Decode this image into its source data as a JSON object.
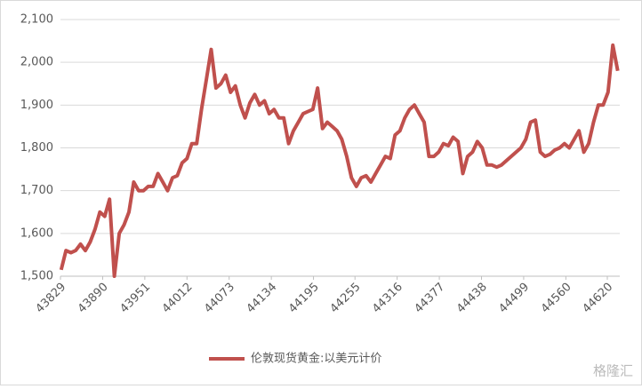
{
  "chart_data": {
    "type": "line",
    "series": [
      {
        "name": "伦敦现货黄金:以美元计价",
        "color": "#c0504d",
        "x": [
          43830,
          43837,
          43844,
          43851,
          43858,
          43865,
          43872,
          43879,
          43886,
          43893,
          43900,
          43907,
          43914,
          43921,
          43928,
          43935,
          43942,
          43949,
          43956,
          43963,
          43970,
          43977,
          43984,
          43991,
          43998,
          44005,
          44012,
          44019,
          44026,
          44033,
          44040,
          44047,
          44054,
          44061,
          44068,
          44075,
          44082,
          44089,
          44096,
          44103,
          44110,
          44117,
          44124,
          44131,
          44138,
          44145,
          44152,
          44159,
          44166,
          44173,
          44180,
          44187,
          44194,
          44201,
          44208,
          44215,
          44222,
          44229,
          44236,
          44243,
          44250,
          44257,
          44264,
          44271,
          44278,
          44285,
          44292,
          44299,
          44306,
          44313,
          44320,
          44327,
          44334,
          44341,
          44348,
          44355,
          44362,
          44369,
          44376,
          44383,
          44390,
          44397,
          44404,
          44411,
          44418,
          44425,
          44432,
          44439,
          44446,
          44453,
          44460,
          44467,
          44474,
          44481,
          44488,
          44495,
          44502,
          44509,
          44516,
          44523,
          44530,
          44537,
          44544,
          44551,
          44558,
          44565,
          44572,
          44579,
          44586,
          44593,
          44600,
          44607,
          44614,
          44621,
          44628,
          44635
        ],
        "values": [
          1515,
          1560,
          1555,
          1560,
          1575,
          1560,
          1580,
          1610,
          1650,
          1640,
          1680,
          1500,
          1600,
          1620,
          1650,
          1720,
          1700,
          1700,
          1710,
          1710,
          1740,
          1720,
          1700,
          1730,
          1735,
          1765,
          1775,
          1810,
          1810,
          1890,
          1960,
          2030,
          1940,
          1950,
          1970,
          1930,
          1945,
          1900,
          1870,
          1905,
          1925,
          1900,
          1910,
          1880,
          1890,
          1870,
          1870,
          1810,
          1840,
          1860,
          1880,
          1885,
          1890,
          1940,
          1845,
          1860,
          1850,
          1840,
          1820,
          1780,
          1730,
          1710,
          1730,
          1735,
          1720,
          1740,
          1760,
          1780,
          1775,
          1830,
          1840,
          1870,
          1890,
          1900,
          1880,
          1860,
          1780,
          1780,
          1790,
          1810,
          1805,
          1825,
          1815,
          1740,
          1780,
          1790,
          1815,
          1800,
          1760,
          1760,
          1755,
          1760,
          1770,
          1780,
          1790,
          1800,
          1820,
          1860,
          1865,
          1790,
          1780,
          1785,
          1795,
          1800,
          1810,
          1800,
          1820,
          1840,
          1790,
          1810,
          1860,
          1900,
          1900,
          1930,
          2040,
          1980
        ]
      }
    ],
    "xlim": [
      43829,
      44638
    ],
    "xticks": [
      43829,
      43890,
      43951,
      44012,
      44073,
      44134,
      44195,
      44255,
      44316,
      44377,
      44438,
      44499,
      44560,
      44620
    ],
    "ylim": [
      1500,
      2100
    ],
    "yticks": [
      {
        "value": 1500,
        "label": "1,500"
      },
      {
        "value": 1600,
        "label": "1,600"
      },
      {
        "value": 1700,
        "label": "1,700"
      },
      {
        "value": 1800,
        "label": "1,800"
      },
      {
        "value": 1900,
        "label": "1,900"
      },
      {
        "value": 2000,
        "label": "2,000"
      },
      {
        "value": 2100,
        "label": "2,100"
      }
    ],
    "grid": true,
    "legend": "bottom",
    "watermark": "格隆汇"
  }
}
